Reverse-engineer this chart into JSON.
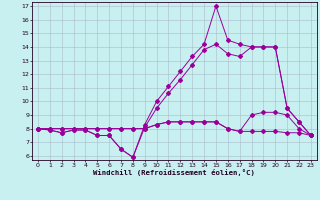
{
  "bg_color": "#c8f0f0",
  "line_color": "#990099",
  "grid_color": "#aabbcc",
  "xlabel": "Windchill (Refroidissement éolien,°C)",
  "xlim": [
    -0.5,
    23.5
  ],
  "ylim": [
    5.7,
    17.3
  ],
  "yticks": [
    6,
    7,
    8,
    9,
    10,
    11,
    12,
    13,
    14,
    15,
    16,
    17
  ],
  "xticks": [
    0,
    1,
    2,
    3,
    4,
    5,
    6,
    7,
    8,
    9,
    10,
    11,
    12,
    13,
    14,
    15,
    16,
    17,
    18,
    19,
    20,
    21,
    22,
    23
  ],
  "line1_x": [
    0,
    1,
    2,
    3,
    4,
    5,
    6,
    7,
    8,
    9,
    10,
    11,
    12,
    13,
    14,
    15,
    16,
    17,
    18,
    19,
    20,
    21,
    22,
    23
  ],
  "line1_y": [
    8.0,
    7.9,
    7.7,
    7.9,
    7.9,
    7.5,
    7.5,
    6.5,
    5.9,
    8.3,
    10.0,
    11.1,
    12.2,
    13.3,
    14.2,
    17.0,
    14.5,
    14.2,
    14.0,
    14.0,
    14.0,
    9.5,
    8.5,
    7.5
  ],
  "line2_x": [
    0,
    1,
    2,
    3,
    4,
    5,
    6,
    7,
    8,
    9,
    10,
    11,
    12,
    13,
    14,
    15,
    16,
    17,
    18,
    19,
    20,
    21,
    22,
    23
  ],
  "line2_y": [
    8.0,
    7.9,
    7.7,
    7.9,
    7.9,
    7.5,
    7.5,
    6.5,
    5.9,
    8.1,
    9.5,
    10.6,
    11.6,
    12.7,
    13.8,
    14.2,
    13.5,
    13.3,
    14.0,
    14.0,
    14.0,
    9.5,
    8.5,
    7.5
  ],
  "line3_x": [
    0,
    1,
    2,
    3,
    4,
    5,
    6,
    7,
    8,
    9,
    10,
    11,
    12,
    13,
    14,
    15,
    16,
    17,
    18,
    19,
    20,
    21,
    22,
    23
  ],
  "line3_y": [
    8.0,
    8.0,
    8.0,
    8.0,
    8.0,
    8.0,
    8.0,
    8.0,
    8.0,
    8.0,
    8.3,
    8.5,
    8.5,
    8.5,
    8.5,
    8.5,
    8.0,
    7.8,
    7.8,
    7.8,
    7.8,
    7.7,
    7.7,
    7.5
  ],
  "line4_x": [
    0,
    1,
    2,
    3,
    4,
    5,
    6,
    7,
    8,
    9,
    10,
    11,
    12,
    13,
    14,
    15,
    16,
    17,
    18,
    19,
    20,
    21,
    22,
    23
  ],
  "line4_y": [
    8.0,
    8.0,
    8.0,
    8.0,
    8.0,
    8.0,
    8.0,
    8.0,
    8.0,
    8.0,
    8.3,
    8.5,
    8.5,
    8.5,
    8.5,
    8.5,
    8.0,
    7.8,
    9.0,
    9.2,
    9.2,
    9.0,
    8.0,
    7.5
  ]
}
